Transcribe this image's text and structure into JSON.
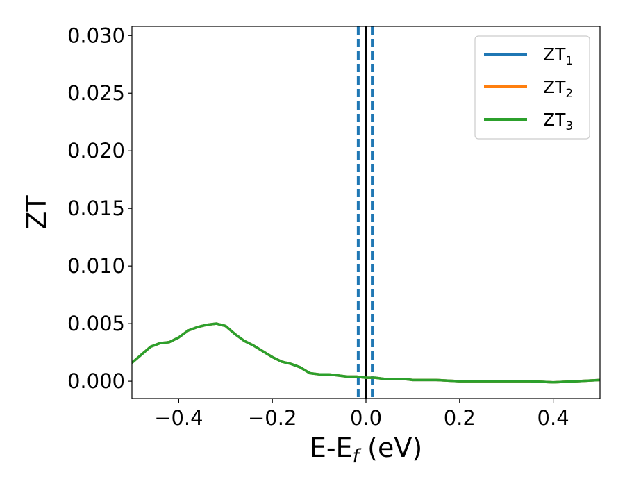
{
  "chart_data": {
    "type": "line",
    "xlabel": {
      "main": "E-E",
      "sub": "f",
      "tail": " (eV)"
    },
    "ylabel": "ZT",
    "xlim": [
      -0.5,
      0.5
    ],
    "ylim": [
      -0.0015,
      0.0308
    ],
    "xticks": [
      -0.4,
      -0.2,
      0.0,
      0.2,
      0.4
    ],
    "xtick_labels": [
      "−0.4",
      "−0.2",
      "0.0",
      "0.2",
      "0.4"
    ],
    "yticks": [
      0.0,
      0.005,
      0.01,
      0.015,
      0.02,
      0.025,
      0.03
    ],
    "ytick_labels": [
      "0.000",
      "0.005",
      "0.010",
      "0.015",
      "0.020",
      "0.025",
      "0.030"
    ],
    "grid": false,
    "legend_position": "top-right",
    "vertical_lines": [
      {
        "x": 0.0,
        "color": "#000000",
        "style": "solid"
      },
      {
        "x": -0.0165,
        "color": "#1f77b4",
        "style": "dashed"
      },
      {
        "x": 0.0135,
        "color": "#1f77b4",
        "style": "dashed"
      }
    ],
    "x": [
      -0.5,
      -0.48,
      -0.46,
      -0.44,
      -0.42,
      -0.4,
      -0.38,
      -0.36,
      -0.34,
      -0.32,
      -0.3,
      -0.28,
      -0.26,
      -0.24,
      -0.22,
      -0.2,
      -0.18,
      -0.16,
      -0.14,
      -0.12,
      -0.1,
      -0.08,
      -0.06,
      -0.04,
      -0.02,
      0.0,
      0.02,
      0.04,
      0.06,
      0.08,
      0.1,
      0.15,
      0.2,
      0.25,
      0.3,
      0.35,
      0.4,
      0.45,
      0.5
    ],
    "series": [
      {
        "name": "ZT",
        "sub": "1",
        "color": "#1f77b4",
        "values": [
          0.0016,
          0.0023,
          0.003,
          0.0033,
          0.0034,
          0.0038,
          0.0044,
          0.0047,
          0.0049,
          0.005,
          0.0048,
          0.0041,
          0.0035,
          0.0031,
          0.0026,
          0.0021,
          0.0017,
          0.0015,
          0.0012,
          0.0007,
          0.0006,
          0.0006,
          0.0005,
          0.0004,
          0.0004,
          0.0003,
          0.0003,
          0.0002,
          0.0002,
          0.0002,
          0.0001,
          0.0001,
          0.0,
          0.0,
          0.0,
          0.0,
          -0.0001,
          0.0,
          0.0001
        ]
      },
      {
        "name": "ZT",
        "sub": "2",
        "color": "#ff7f0e",
        "values": [
          0.0016,
          0.0023,
          0.003,
          0.0033,
          0.0034,
          0.0038,
          0.0044,
          0.0047,
          0.0049,
          0.005,
          0.0048,
          0.0041,
          0.0035,
          0.0031,
          0.0026,
          0.0021,
          0.0017,
          0.0015,
          0.0012,
          0.0007,
          0.0006,
          0.0006,
          0.0005,
          0.0004,
          0.0004,
          0.0003,
          0.0003,
          0.0002,
          0.0002,
          0.0002,
          0.0001,
          0.0001,
          0.0,
          0.0,
          0.0,
          0.0,
          -0.0001,
          0.0,
          0.0001
        ]
      },
      {
        "name": "ZT",
        "sub": "3",
        "color": "#2ca02c",
        "values": [
          0.0016,
          0.0023,
          0.003,
          0.0033,
          0.0034,
          0.0038,
          0.0044,
          0.0047,
          0.0049,
          0.005,
          0.0048,
          0.0041,
          0.0035,
          0.0031,
          0.0026,
          0.0021,
          0.0017,
          0.0015,
          0.0012,
          0.0007,
          0.0006,
          0.0006,
          0.0005,
          0.0004,
          0.0004,
          0.0003,
          0.0003,
          0.0002,
          0.0002,
          0.0002,
          0.0001,
          0.0001,
          0.0,
          0.0,
          0.0,
          0.0,
          -0.0001,
          0.0,
          0.0001
        ]
      }
    ]
  }
}
